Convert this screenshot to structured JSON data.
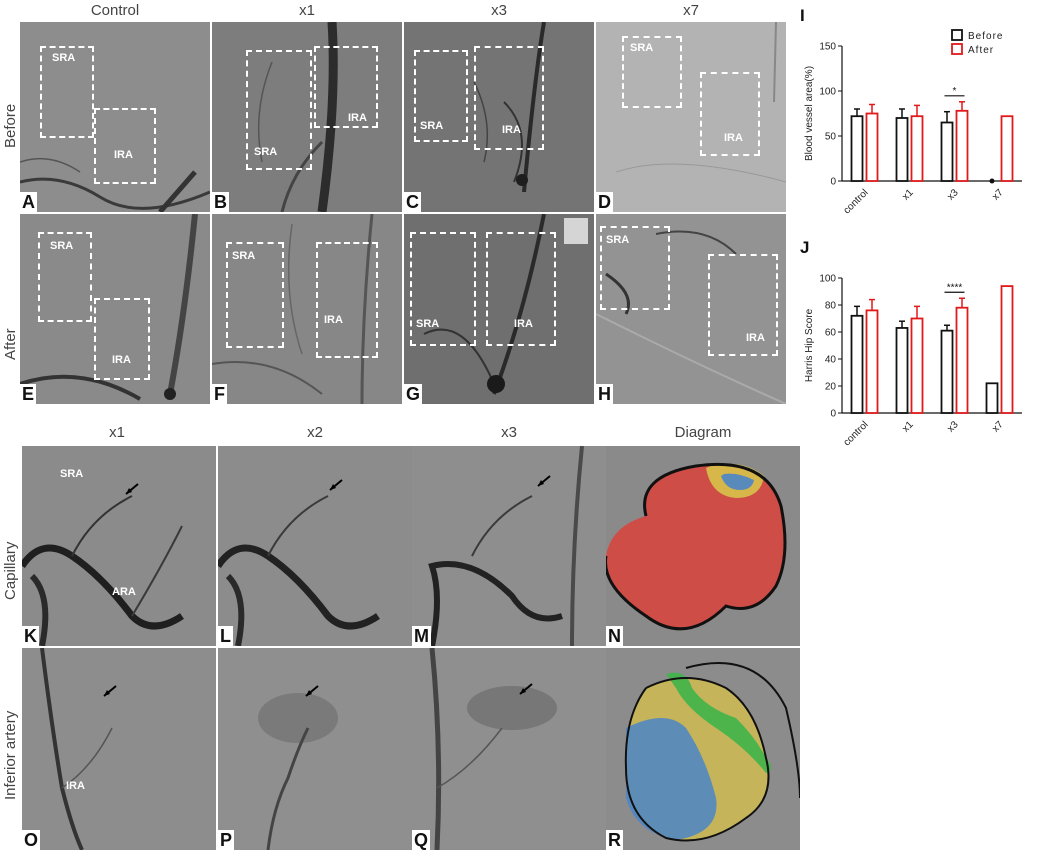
{
  "top": {
    "columns": [
      "Control",
      "x1",
      "x3",
      "x7"
    ],
    "rows": [
      "Before",
      "After"
    ],
    "panels": [
      {
        "letter": "A",
        "regions": [
          "SRA",
          "IRA"
        ]
      },
      {
        "letter": "B",
        "regions": [
          "SRA",
          "IRA"
        ]
      },
      {
        "letter": "C",
        "regions": [
          "SRA",
          "IRA"
        ]
      },
      {
        "letter": "D",
        "regions": [
          "SRA",
          "IRA"
        ]
      },
      {
        "letter": "E",
        "regions": [
          "SRA",
          "IRA"
        ]
      },
      {
        "letter": "F",
        "regions": [
          "SRA",
          "IRA"
        ]
      },
      {
        "letter": "G",
        "regions": [
          "SRA",
          "IRA"
        ]
      },
      {
        "letter": "H",
        "regions": [
          "SRA",
          "IRA"
        ]
      }
    ]
  },
  "bottom": {
    "columns": [
      "x1",
      "x2",
      "x3",
      "Diagram"
    ],
    "rows": [
      "Capillary",
      "Inferior artery"
    ],
    "panels": [
      {
        "letter": "K",
        "labels": [
          "SRA",
          "ARA"
        ]
      },
      {
        "letter": "L",
        "labels": []
      },
      {
        "letter": "M",
        "labels": []
      },
      {
        "letter": "N",
        "labels": []
      },
      {
        "letter": "O",
        "labels": [
          "IRA"
        ]
      },
      {
        "letter": "P",
        "labels": []
      },
      {
        "letter": "Q",
        "labels": []
      },
      {
        "letter": "R",
        "labels": []
      }
    ],
    "diagram_colors": {
      "red": "#d9423a",
      "yellow": "#d8c24a",
      "blue": "#4a86c8",
      "green": "#3fb44a"
    }
  },
  "chart_data": [
    {
      "type": "bar",
      "letter": "I",
      "ylabel": "Blood vessel area(%)",
      "categories": [
        "control",
        "x1",
        "x3",
        "x7"
      ],
      "ylim": [
        0,
        150
      ],
      "yticks": [
        0,
        50,
        100,
        150
      ],
      "series": [
        {
          "name": "Before",
          "color": "#111111",
          "values": [
            72,
            70,
            65,
            0
          ],
          "errors": [
            8,
            10,
            12,
            0
          ]
        },
        {
          "name": "After",
          "color": "#e0191b",
          "values": [
            75,
            72,
            78,
            72
          ],
          "errors": [
            10,
            12,
            10,
            0
          ]
        }
      ],
      "significance": [
        {
          "category": "x3",
          "label": "*"
        }
      ],
      "legend_position": "top-right"
    },
    {
      "type": "bar",
      "letter": "J",
      "ylabel": "Harris Hip Score",
      "categories": [
        "control",
        "x1",
        "x3",
        "x7"
      ],
      "ylim": [
        0,
        100
      ],
      "yticks": [
        0,
        20,
        40,
        60,
        80,
        100
      ],
      "series": [
        {
          "name": "Before",
          "color": "#111111",
          "values": [
            72,
            63,
            61,
            22
          ],
          "errors": [
            7,
            5,
            4,
            0
          ]
        },
        {
          "name": "After",
          "color": "#e0191b",
          "values": [
            76,
            70,
            78,
            94
          ],
          "errors": [
            8,
            9,
            7,
            0
          ]
        }
      ],
      "significance": [
        {
          "category": "x3",
          "label": "****"
        }
      ]
    }
  ]
}
